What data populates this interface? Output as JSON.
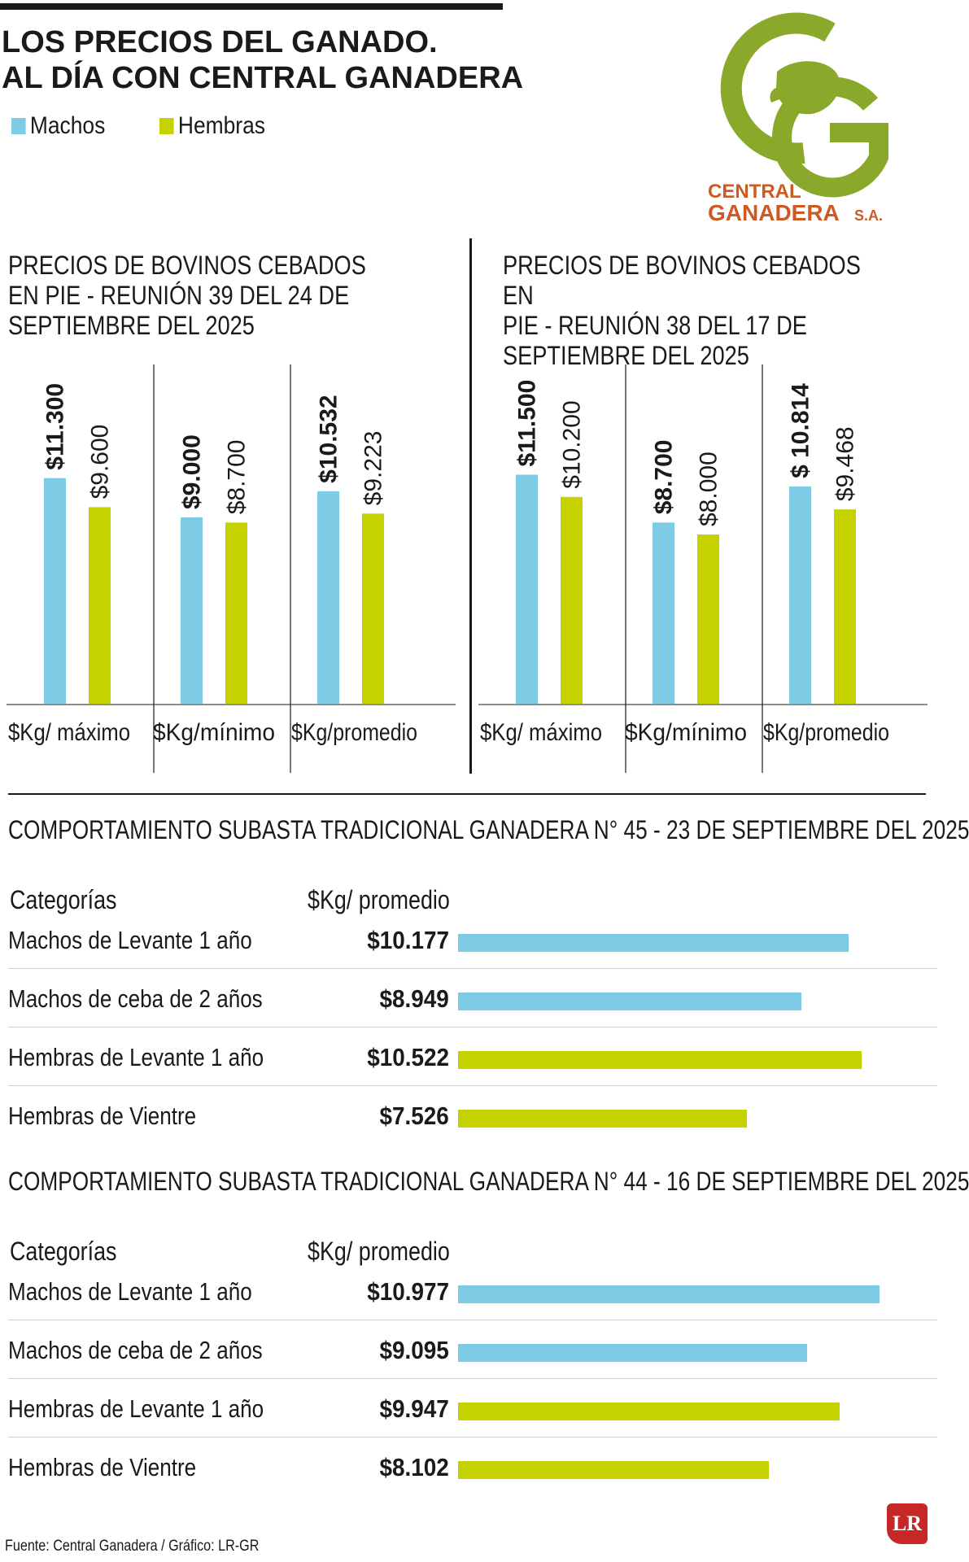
{
  "title_line1": "LOS PRECIOS DEL GANADO.",
  "title_line2": "AL DÍA CON CENTRAL GANADERA",
  "legend": {
    "machos": "Machos",
    "hembras": "Hembras",
    "machos_color": "#7ecbe5",
    "hembras_color": "#c5d200"
  },
  "logo": {
    "line1": "CENTRAL",
    "line2": "GANADERA",
    "suffix": "S.A.",
    "green": "#8aa82a",
    "text_color": "#cc5a22"
  },
  "chart_data": [
    {
      "type": "bar",
      "title": "PRECIOS DE BOVINOS CEBADOS EN PIE - REUNIÓN 39 DEL 24 DE SEPTIEMBRE DEL 2025",
      "title_lines": [
        "PRECIOS DE BOVINOS CEBADOS",
        "EN PIE - REUNIÓN 39 DEL 24 DE",
        "SEPTIEMBRE DEL 2025"
      ],
      "categories": [
        "$Kg/ máximo",
        "$Kg/mínimo",
        "$Kg/promedio"
      ],
      "series": [
        {
          "name": "Machos",
          "values": [
            11300,
            9000,
            10532
          ],
          "labels": [
            "$11.300",
            "$9.000",
            "$10.532"
          ]
        },
        {
          "name": "Hembras",
          "values": [
            9600,
            8700,
            9223
          ],
          "labels": [
            "$9.600",
            "$8.700",
            "$9.223"
          ]
        }
      ]
    },
    {
      "type": "bar",
      "title": "PRECIOS DE BOVINOS CEBADOS EN PIE - REUNIÓN 38 DEL 17 DE SEPTIEMBRE DEL 2025",
      "title_lines": [
        "PRECIOS DE BOVINOS CEBADOS EN",
        "PIE - REUNIÓN 38 DEL 17 DE",
        "SEPTIEMBRE DEL 2025"
      ],
      "categories": [
        "$Kg/ máximo",
        "$Kg/mínimo",
        "$Kg/promedio"
      ],
      "series": [
        {
          "name": "Machos",
          "values": [
            11500,
            8700,
            10814
          ],
          "labels": [
            "$11.500",
            "$8.700",
            "$ 10.814"
          ]
        },
        {
          "name": "Hembras",
          "values": [
            10200,
            8000,
            9468
          ],
          "labels": [
            "$10.200",
            "$8.000",
            "$9.468"
          ]
        }
      ]
    },
    {
      "type": "bar",
      "title": "COMPORTAMIENTO SUBASTA TRADICIONAL GANADERA N° 45 - 23 DE SEPTIEMBRE DEL 2025",
      "col_category": "Categorías",
      "col_value": "$Kg/ promedio",
      "rows": [
        {
          "category": "Machos de Levante 1 año",
          "value": 10177,
          "label": "$10.177",
          "group": "Machos"
        },
        {
          "category": "Machos de ceba de 2 años",
          "value": 8949,
          "label": "$8.949",
          "group": "Machos"
        },
        {
          "category": "Hembras de Levante 1 año",
          "value": 10522,
          "label": "$10.522",
          "group": "Hembras"
        },
        {
          "category": "Hembras de Vientre",
          "value": 7526,
          "label": "$7.526",
          "group": "Hembras"
        }
      ]
    },
    {
      "type": "bar",
      "title": "COMPORTAMIENTO SUBASTA TRADICIONAL GANADERA N° 44 - 16 DE SEPTIEMBRE DEL 2025",
      "col_category": "Categorías",
      "col_value": "$Kg/ promedio",
      "rows": [
        {
          "category": "Machos de Levante 1 año",
          "value": 10977,
          "label": "$10.977",
          "group": "Machos"
        },
        {
          "category": "Machos de ceba de 2 años",
          "value": 9095,
          "label": "$9.095",
          "group": "Machos"
        },
        {
          "category": "Hembras de Levante 1 año",
          "value": 9947,
          "label": "$9.947",
          "group": "Hembras"
        },
        {
          "category": "Hembras de Vientre",
          "value": 8102,
          "label": "$8.102",
          "group": "Hembras"
        }
      ]
    }
  ],
  "source": "Fuente: Central Ganadera / Gráfico: LR-GR",
  "lr_logo": "LR"
}
